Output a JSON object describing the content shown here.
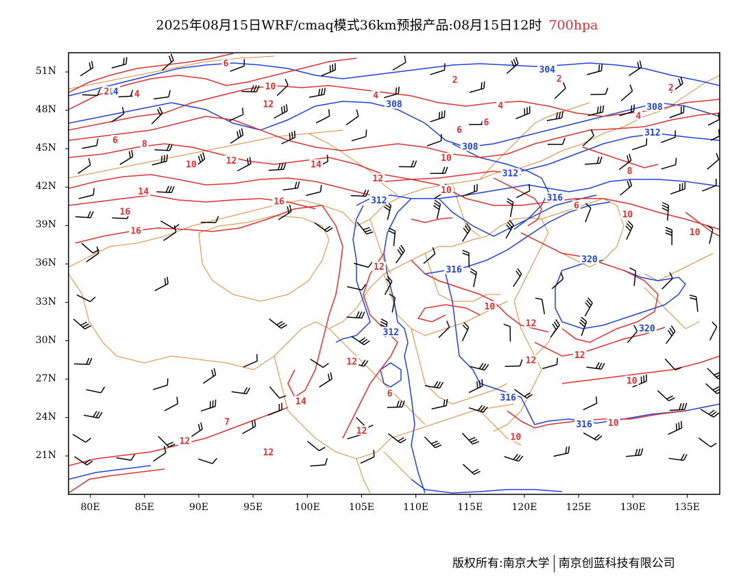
{
  "title": {
    "main": "2025年08月15日WRF/cmaq模式36km预报产品:08月15日12时",
    "level": "700hpa"
  },
  "axes": {
    "y_ticks": [
      {
        "label": "51N",
        "lat": 51
      },
      {
        "label": "48N",
        "lat": 48
      },
      {
        "label": "45N",
        "lat": 45
      },
      {
        "label": "42N",
        "lat": 42
      },
      {
        "label": "39N",
        "lat": 39
      },
      {
        "label": "36N",
        "lat": 36
      },
      {
        "label": "33N",
        "lat": 33
      },
      {
        "label": "30N",
        "lat": 30
      },
      {
        "label": "27N",
        "lat": 27
      },
      {
        "label": "24N",
        "lat": 24
      },
      {
        "label": "21N",
        "lat": 21
      }
    ],
    "x_ticks": [
      {
        "label": "80E",
        "lon": 80
      },
      {
        "label": "85E",
        "lon": 85
      },
      {
        "label": "90E",
        "lon": 90
      },
      {
        "label": "95E",
        "lon": 95
      },
      {
        "label": "100E",
        "lon": 100
      },
      {
        "label": "105E",
        "lon": 105
      },
      {
        "label": "110E",
        "lon": 110
      },
      {
        "label": "115E",
        "lon": 115
      },
      {
        "label": "120E",
        "lon": 120
      },
      {
        "label": "125E",
        "lon": 125
      },
      {
        "label": "130E",
        "lon": 130
      },
      {
        "label": "135E",
        "lon": 135
      }
    ],
    "lon_range": [
      78,
      138
    ],
    "lat_range": [
      18,
      52.5
    ]
  },
  "colors": {
    "geopotential": "#2040e0",
    "temperature": "#e03030",
    "boundary": "#d98a3a",
    "wind": "#000000",
    "level": "#e03030"
  },
  "geopotential_labels": [
    {
      "text": "304",
      "lon": 122.1,
      "lat": 51.1
    },
    {
      "text": "308",
      "lon": 108.0,
      "lat": 48.4
    },
    {
      "text": "308",
      "lon": 132.0,
      "lat": 48.2
    },
    {
      "text": "312",
      "lon": 131.8,
      "lat": 46.2
    },
    {
      "text": "308",
      "lon": 115.0,
      "lat": 45.1
    },
    {
      "text": "312",
      "lon": 118.7,
      "lat": 43.0
    },
    {
      "text": "316",
      "lon": 122.8,
      "lat": 41.1
    },
    {
      "text": "312",
      "lon": 106.6,
      "lat": 40.9
    },
    {
      "text": "316",
      "lon": 113.5,
      "lat": 35.5
    },
    {
      "text": "320",
      "lon": 126.0,
      "lat": 36.3
    },
    {
      "text": "320",
      "lon": 131.3,
      "lat": 30.9
    },
    {
      "text": "312",
      "lon": 107.7,
      "lat": 30.6
    },
    {
      "text": "316",
      "lon": 118.5,
      "lat": 25.5
    },
    {
      "text": "316",
      "lon": 125.5,
      "lat": 23.4
    },
    {
      "text": "14",
      "lon": 82.1,
      "lat": 49.4
    }
  ],
  "temperature_labels": [
    {
      "text": "6",
      "lon": 92.5,
      "lat": 51.6
    },
    {
      "text": "4",
      "lon": 84.3,
      "lat": 49.2
    },
    {
      "text": "2",
      "lon": 81.5,
      "lat": 49.4
    },
    {
      "text": "10",
      "lon": 96.6,
      "lat": 49.8
    },
    {
      "text": "12",
      "lon": 96.4,
      "lat": 48.4
    },
    {
      "text": "4",
      "lon": 106.3,
      "lat": 49.1
    },
    {
      "text": "2",
      "lon": 113.6,
      "lat": 50.3
    },
    {
      "text": "2",
      "lon": 123.2,
      "lat": 50.4
    },
    {
      "text": "2",
      "lon": 133.5,
      "lat": 49.7
    },
    {
      "text": "4",
      "lon": 117.8,
      "lat": 48.3
    },
    {
      "text": "4",
      "lon": 130.5,
      "lat": 47.5
    },
    {
      "text": "6",
      "lon": 114.0,
      "lat": 46.4
    },
    {
      "text": "6",
      "lon": 116.5,
      "lat": 47.0
    },
    {
      "text": "6",
      "lon": 82.3,
      "lat": 45.6
    },
    {
      "text": "8",
      "lon": 85.0,
      "lat": 45.3
    },
    {
      "text": "10",
      "lon": 89.3,
      "lat": 43.7
    },
    {
      "text": "12",
      "lon": 93.0,
      "lat": 44.0
    },
    {
      "text": "14",
      "lon": 100.8,
      "lat": 43.7
    },
    {
      "text": "12",
      "lon": 106.5,
      "lat": 42.6
    },
    {
      "text": "10",
      "lon": 112.8,
      "lat": 44.2
    },
    {
      "text": "10",
      "lon": 112.8,
      "lat": 41.7
    },
    {
      "text": "14",
      "lon": 84.9,
      "lat": 41.6
    },
    {
      "text": "16",
      "lon": 83.2,
      "lat": 40.0
    },
    {
      "text": "16",
      "lon": 97.4,
      "lat": 40.8
    },
    {
      "text": "16",
      "lon": 84.2,
      "lat": 38.5
    },
    {
      "text": "8",
      "lon": 129.7,
      "lat": 43.2
    },
    {
      "text": "6",
      "lon": 124.8,
      "lat": 40.5
    },
    {
      "text": "10",
      "lon": 129.5,
      "lat": 39.8
    },
    {
      "text": "12",
      "lon": 106.6,
      "lat": 35.7
    },
    {
      "text": "10",
      "lon": 116.8,
      "lat": 32.6
    },
    {
      "text": "12",
      "lon": 120.6,
      "lat": 31.3
    },
    {
      "text": "12",
      "lon": 125.1,
      "lat": 28.8
    },
    {
      "text": "12",
      "lon": 120.6,
      "lat": 28.4
    },
    {
      "text": "10",
      "lon": 129.9,
      "lat": 26.8
    },
    {
      "text": "12",
      "lon": 104.1,
      "lat": 28.3
    },
    {
      "text": "6",
      "lon": 107.6,
      "lat": 25.8
    },
    {
      "text": "14",
      "lon": 99.4,
      "lat": 25.2
    },
    {
      "text": "12",
      "lon": 105.0,
      "lat": 22.9
    },
    {
      "text": "10",
      "lon": 119.2,
      "lat": 22.4
    },
    {
      "text": "10",
      "lon": 128.2,
      "lat": 23.5
    },
    {
      "text": "12",
      "lon": 88.7,
      "lat": 22.1
    },
    {
      "text": "12",
      "lon": 96.4,
      "lat": 21.2
    },
    {
      "text": "7",
      "lon": 92.6,
      "lat": 23.6
    },
    {
      "text": "10",
      "lon": 135.7,
      "lat": 38.4
    }
  ],
  "footer": {
    "left": "版权所有:南京大学",
    "right": "南京创蓝科技有限公司"
  }
}
